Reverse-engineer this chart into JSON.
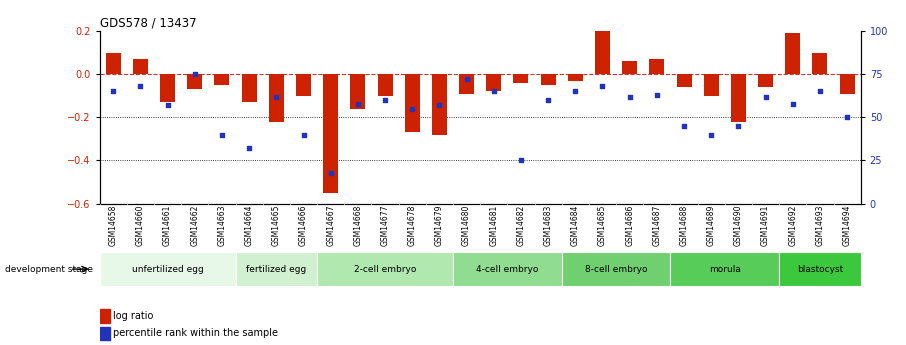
{
  "title": "GDS578 / 13437",
  "samples": [
    "GSM14658",
    "GSM14660",
    "GSM14661",
    "GSM14662",
    "GSM14663",
    "GSM14664",
    "GSM14665",
    "GSM14666",
    "GSM14667",
    "GSM14668",
    "GSM14677",
    "GSM14678",
    "GSM14679",
    "GSM14680",
    "GSM14681",
    "GSM14682",
    "GSM14683",
    "GSM14684",
    "GSM14685",
    "GSM14686",
    "GSM14687",
    "GSM14688",
    "GSM14689",
    "GSM14690",
    "GSM14691",
    "GSM14692",
    "GSM14693",
    "GSM14694"
  ],
  "log_ratio": [
    0.1,
    0.07,
    -0.13,
    -0.07,
    -0.05,
    -0.13,
    -0.22,
    -0.1,
    -0.55,
    -0.16,
    -0.1,
    -0.27,
    -0.28,
    -0.09,
    -0.08,
    -0.04,
    -0.05,
    -0.03,
    0.2,
    0.06,
    0.07,
    -0.06,
    -0.1,
    -0.22,
    -0.06,
    0.19,
    0.1,
    -0.09
  ],
  "percentile": [
    65,
    68,
    57,
    75,
    40,
    32,
    62,
    40,
    18,
    58,
    60,
    55,
    57,
    72,
    65,
    25,
    60,
    65,
    68,
    62,
    63,
    45,
    40,
    45,
    62,
    58,
    65,
    50
  ],
  "stage_groups": [
    {
      "label": "unfertilized egg",
      "start": 0,
      "end": 5
    },
    {
      "label": "fertilized egg",
      "start": 5,
      "end": 8
    },
    {
      "label": "2-cell embryo",
      "start": 8,
      "end": 13
    },
    {
      "label": "4-cell embryo",
      "start": 13,
      "end": 17
    },
    {
      "label": "8-cell embryo",
      "start": 17,
      "end": 21
    },
    {
      "label": "morula",
      "start": 21,
      "end": 25
    },
    {
      "label": "blastocyst",
      "start": 25,
      "end": 28
    }
  ],
  "stage_colors": [
    "#e8f8e8",
    "#d0f0d0",
    "#b0e8b0",
    "#90dc90",
    "#70d070",
    "#58cc58",
    "#3cc83c"
  ],
  "bar_color": "#cc2200",
  "dot_color": "#2233bb",
  "dashed_line_color": "#cc3333",
  "ylim_left": [
    -0.6,
    0.2
  ],
  "ylim_right": [
    0,
    100
  ],
  "background_color": "#ffffff"
}
